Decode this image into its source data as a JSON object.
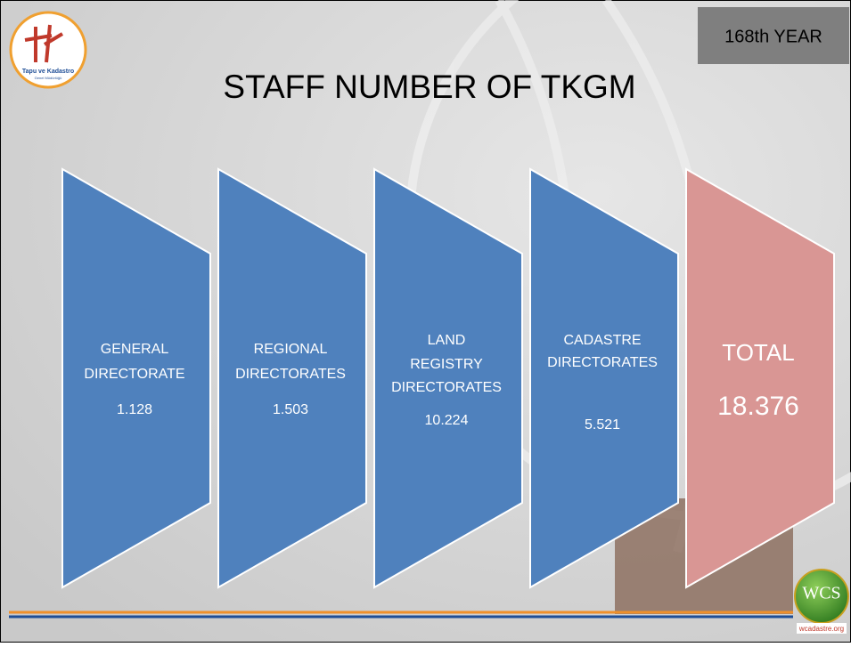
{
  "title": "STAFF NUMBER OF TKGM",
  "badge": "168th YEAR",
  "logo": {
    "name": "Tapu ve Kadastro",
    "sub": "Genel Müdürlüğü"
  },
  "wcs": {
    "name": "WCS",
    "url": "wcadastre.org"
  },
  "nodes": [
    {
      "lines": [
        "GENERAL",
        "DIRECTORATE"
      ],
      "value": "1.128"
    },
    {
      "lines": [
        "REGIONAL",
        "DIRECTORATES"
      ],
      "value": "1.503"
    },
    {
      "lines": [
        "LAND",
        "REGISTRY",
        "DIRECTORATES"
      ],
      "value": "10.224"
    },
    {
      "lines": [
        "CADASTRE",
        "DIRECTORATES"
      ],
      "value": "5.521"
    },
    {
      "lines": [
        "TOTAL"
      ],
      "value": "18.376"
    }
  ]
}
